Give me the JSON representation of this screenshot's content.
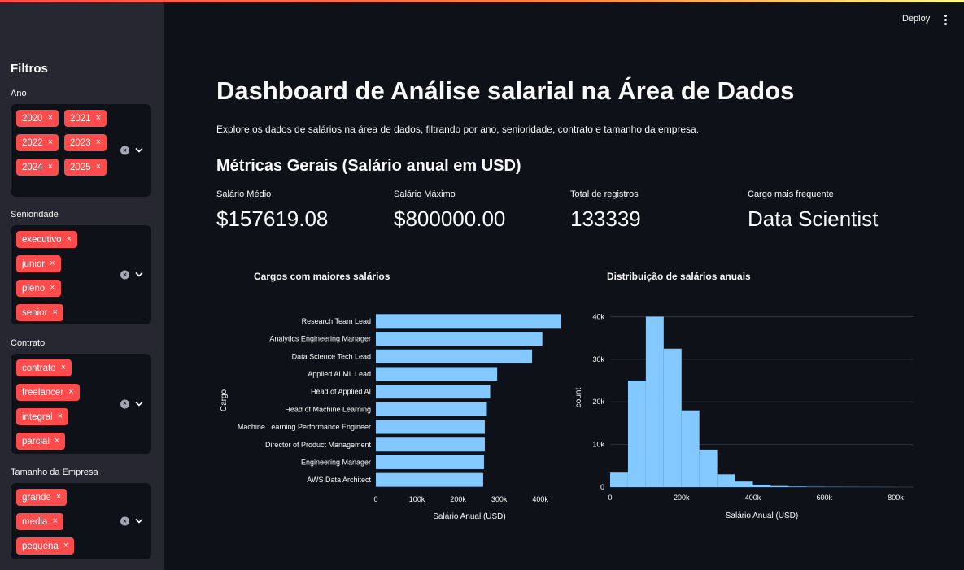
{
  "header": {
    "deploy_label": "Deploy",
    "menu_icon": "kebab-menu-icon"
  },
  "sidebar": {
    "title": "Filtros",
    "filters": [
      {
        "label": "Ano",
        "chips": [
          "2020",
          "2021",
          "2022",
          "2023",
          "2024",
          "2025"
        ]
      },
      {
        "label": "Senioridade",
        "chips": [
          "executivo",
          "junior",
          "pleno",
          "senior"
        ]
      },
      {
        "label": "Contrato",
        "chips": [
          "contrato",
          "freelancer",
          "integral",
          "parcial"
        ]
      },
      {
        "label": "Tamanho da Empresa",
        "chips": [
          "grande",
          "media",
          "pequena"
        ]
      }
    ],
    "chip_close_glyph": "×",
    "clear_glyph": "×"
  },
  "main": {
    "title": "Dashboard de Análise salarial na Área de Dados",
    "description": "Explore os dados de salários na área de dados, filtrando por ano, senioridade, contrato e tamanho da empresa.",
    "metrics_title": "Métricas Gerais (Salário anual em USD)",
    "metrics": [
      {
        "label": "Salário Médio",
        "value": "$157619.08"
      },
      {
        "label": "Salário Máximo",
        "value": "$800000.00"
      },
      {
        "label": "Total de registros",
        "value": "133339"
      },
      {
        "label": "Cargo mais frequente",
        "value": "Data Scientist"
      }
    ]
  },
  "colors": {
    "accent": "#ff4b4b",
    "bar": "#83c9ff",
    "background": "#0e1117",
    "sidebar": "#262730"
  },
  "chart_data": [
    {
      "type": "bar",
      "orientation": "horizontal",
      "title": "Cargos com maiores salários",
      "xlabel": "Salário Anual (USD)",
      "ylabel": "Cargo",
      "categories": [
        "Research Team Lead",
        "Analytics Engineering Manager",
        "Data Science Tech Lead",
        "Applied AI ML Lead",
        "Head of Applied AI",
        "Head of Machine Learning",
        "Machine Learning Performance Engineer",
        "Director of Product Management",
        "Engineering Manager",
        "AWS Data Architect"
      ],
      "values": [
        450000,
        405000,
        380000,
        295000,
        278000,
        270000,
        265000,
        265000,
        263000,
        261000
      ],
      "xlim": [
        0,
        455000
      ],
      "xticks": [
        0,
        100000,
        200000,
        300000,
        400000
      ],
      "xtick_labels": [
        "0",
        "100k",
        "200k",
        "300k",
        "400k"
      ],
      "grid": false
    },
    {
      "type": "bar",
      "subtype": "histogram",
      "title": "Distribuição de salários anuais",
      "xlabel": "Salário Anual (USD)",
      "ylabel": "count",
      "bin_width": 50000,
      "bin_starts": [
        0,
        50000,
        100000,
        150000,
        200000,
        250000,
        300000,
        350000,
        400000,
        450000,
        500000,
        550000,
        600000,
        650000,
        700000,
        750000
      ],
      "values": [
        3400,
        25000,
        40000,
        32500,
        18000,
        8800,
        3000,
        1300,
        550,
        250,
        130,
        80,
        50,
        40,
        30,
        20
      ],
      "xlim": [
        0,
        850000
      ],
      "ylim": [
        0,
        42000
      ],
      "xticks": [
        0,
        200000,
        400000,
        600000,
        800000
      ],
      "xtick_labels": [
        "0",
        "200k",
        "400k",
        "600k",
        "800k"
      ],
      "yticks": [
        0,
        10000,
        20000,
        30000,
        40000
      ],
      "ytick_labels": [
        "0",
        "10k",
        "20k",
        "30k",
        "40k"
      ],
      "grid": true
    }
  ]
}
